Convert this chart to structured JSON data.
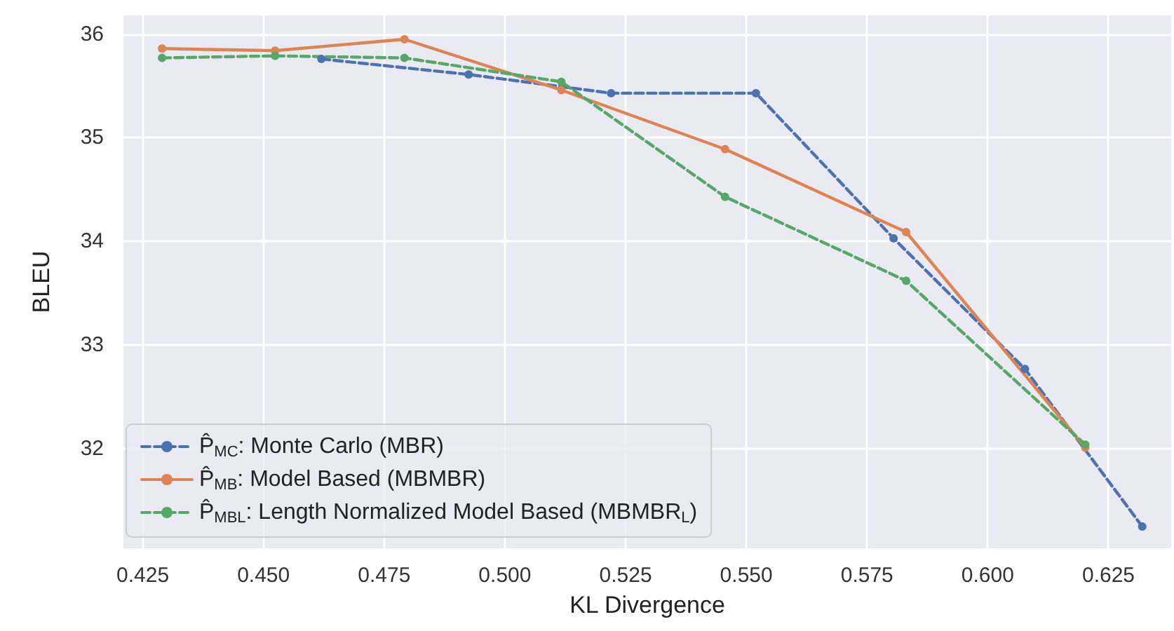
{
  "chart_data": {
    "type": "line",
    "xlabel": "KL Divergence",
    "ylabel": "BLEU",
    "xlim": [
      0.421,
      0.638
    ],
    "ylim": [
      31.04,
      36.18
    ],
    "xticks": [
      0.425,
      {
        "value": 0.45,
        "label": "0.450"
      },
      0.475,
      {
        "value": 0.5,
        "label": "0.500"
      },
      0.525,
      {
        "value": 0.55,
        "label": "0.550"
      },
      0.575,
      {
        "value": 0.6,
        "label": "0.600"
      },
      0.625
    ],
    "yticks": [
      32,
      33,
      34,
      35,
      36
    ],
    "grid": true,
    "legend": "bottom left",
    "marker": "circle",
    "series": [
      {
        "name": "P̂$_{MC}$: Monte Carlo (MBR)",
        "color": "#4c72b0",
        "line_style": "dashed",
        "x": [
          0.462,
          0.4925,
          0.522,
          0.552,
          0.5805,
          0.6077,
          0.632
        ],
        "values": [
          35.76,
          35.61,
          35.43,
          35.43,
          34.03,
          32.77,
          31.25
        ]
      },
      {
        "name": "P̂$_{MB}$: Model Based (MBMBR)",
        "color": "#dd8452",
        "line_style": "solid",
        "x": [
          0.429,
          0.4524,
          0.4792,
          0.5117,
          0.5456,
          0.5831,
          0.6202
        ],
        "values": [
          35.86,
          35.84,
          35.95,
          35.46,
          34.89,
          34.09,
          32.01
        ]
      },
      {
        "name": "P̂$_{MBL}$: Length Normalized Model Based (MBMBR$_{L}$)",
        "color": "#55a868",
        "line_style": "dashed",
        "x": [
          0.429,
          0.4524,
          0.4792,
          0.5117,
          0.5456,
          0.5831,
          0.6202
        ],
        "values": [
          35.77,
          35.79,
          35.77,
          35.54,
          34.43,
          33.62,
          32.04
        ]
      }
    ]
  }
}
